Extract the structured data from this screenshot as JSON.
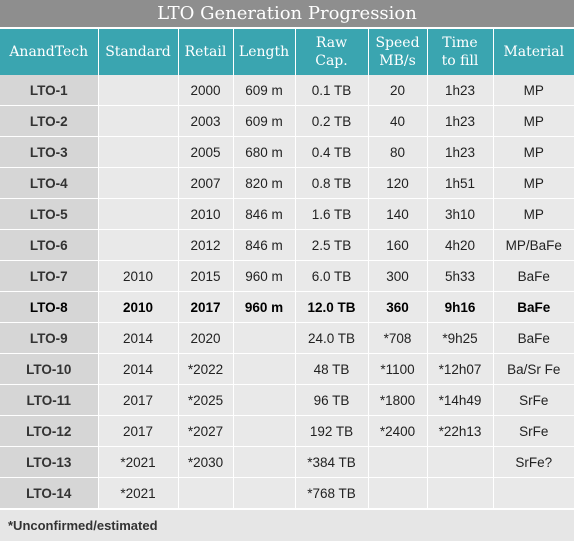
{
  "title": "LTO Generation Progression",
  "headers": [
    "AnandTech",
    "Standard",
    "Retail",
    "Length",
    "Raw\nCap.",
    "Speed\nMB/s",
    "Time\nto fill",
    "Material"
  ],
  "rows": [
    {
      "gen": "LTO-1",
      "standard": "",
      "retail": "2000",
      "length": "609 m",
      "cap": "0.1 TB",
      "speed": "20",
      "time": "1h23",
      "material": "MP",
      "bold": false
    },
    {
      "gen": "LTO-2",
      "standard": "",
      "retail": "2003",
      "length": "609 m",
      "cap": "0.2 TB",
      "speed": "40",
      "time": "1h23",
      "material": "MP",
      "bold": false
    },
    {
      "gen": "LTO-3",
      "standard": "",
      "retail": "2005",
      "length": "680 m",
      "cap": "0.4 TB",
      "speed": "80",
      "time": "1h23",
      "material": "MP",
      "bold": false
    },
    {
      "gen": "LTO-4",
      "standard": "",
      "retail": "2007",
      "length": "820 m",
      "cap": "0.8 TB",
      "speed": "120",
      "time": "1h51",
      "material": "MP",
      "bold": false
    },
    {
      "gen": "LTO-5",
      "standard": "",
      "retail": "2010",
      "length": "846 m",
      "cap": "1.6 TB",
      "speed": "140",
      "time": "3h10",
      "material": "MP",
      "bold": false
    },
    {
      "gen": "LTO-6",
      "standard": "",
      "retail": "2012",
      "length": "846 m",
      "cap": "2.5 TB",
      "speed": "160",
      "time": "4h20",
      "material": "MP/BaFe",
      "bold": false
    },
    {
      "gen": "LTO-7",
      "standard": "2010",
      "retail": "2015",
      "length": "960 m",
      "cap": "6.0 TB",
      "speed": "300",
      "time": "5h33",
      "material": "BaFe",
      "bold": false
    },
    {
      "gen": "LTO-8",
      "standard": "2010",
      "retail": "2017",
      "length": "960 m",
      "cap": "12.0 TB",
      "speed": "360",
      "time": "9h16",
      "material": "BaFe",
      "bold": true
    },
    {
      "gen": "LTO-9",
      "standard": "2014",
      "retail": "2020",
      "length": "",
      "cap": "24.0 TB",
      "speed": "*708",
      "time": "*9h25",
      "material": "BaFe",
      "bold": false
    },
    {
      "gen": "LTO-10",
      "standard": "2014",
      "retail": "*2022",
      "length": "",
      "cap": "48 TB",
      "speed": "*1100",
      "time": "*12h07",
      "material": "Ba/Sr Fe",
      "bold": false
    },
    {
      "gen": "LTO-11",
      "standard": "2017",
      "retail": "*2025",
      "length": "",
      "cap": "96 TB",
      "speed": "*1800",
      "time": "*14h49",
      "material": "SrFe",
      "bold": false
    },
    {
      "gen": "LTO-12",
      "standard": "2017",
      "retail": "*2027",
      "length": "",
      "cap": "192 TB",
      "speed": "*2400",
      "time": "*22h13",
      "material": "SrFe",
      "bold": false
    },
    {
      "gen": "LTO-13",
      "standard": "*2021",
      "retail": "*2030",
      "length": "",
      "cap": "*384 TB",
      "speed": "",
      "time": "",
      "material": "SrFe?",
      "bold": false
    },
    {
      "gen": "LTO-14",
      "standard": "*2021",
      "retail": "",
      "length": "",
      "cap": "*768 TB",
      "speed": "",
      "time": "",
      "material": "",
      "bold": false
    }
  ],
  "footnote": "*Unconfirmed/estimated",
  "colors": {
    "title_bg": "#8e8e8e",
    "header_bg": "#3aa5b0",
    "cell_bg": "#e9e9e9",
    "gen_bg": "#d6d6d6"
  }
}
